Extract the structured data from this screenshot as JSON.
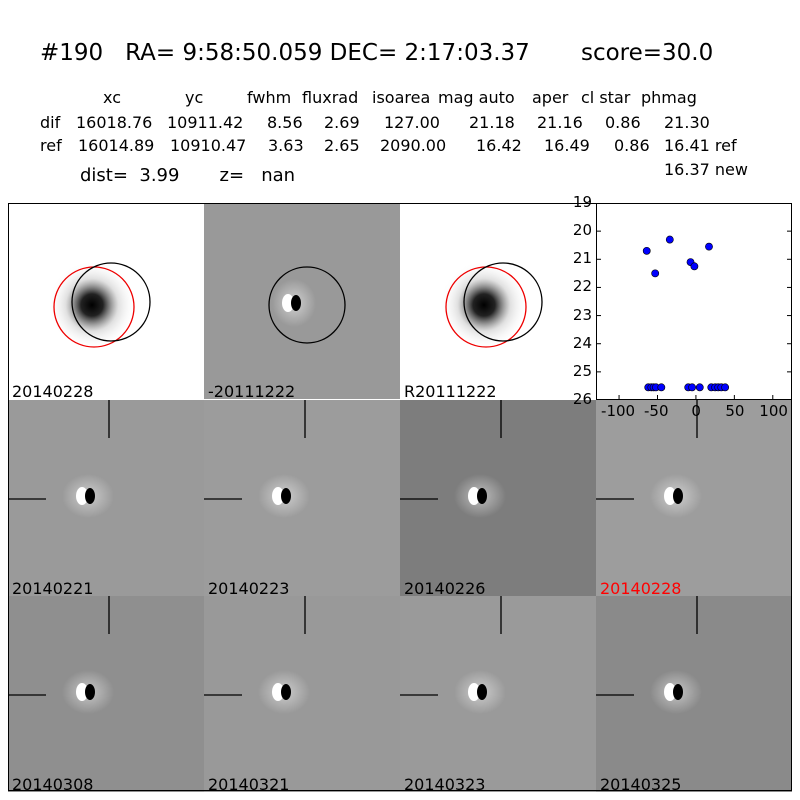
{
  "header": {
    "title": "#190   RA= 9:58:50.059 DEC= 2:17:03.37       score=30.0",
    "columns": [
      "xc",
      "yc",
      "fwhm",
      "fluxrad",
      "isoarea",
      "mag auto",
      "aper",
      "cl star",
      "phmag"
    ],
    "dif_row": {
      "label": "dif",
      "values": [
        "16018.76",
        "10911.42",
        "8.56",
        "2.69",
        "127.00",
        "21.18",
        "21.16",
        "0.86",
        "21.30"
      ]
    },
    "ref_row": {
      "label": "ref",
      "values": [
        "16014.89",
        "10910.47",
        "3.63",
        "2.65",
        "2090.00",
        "16.42",
        "16.49",
        "0.86",
        "16.41 ref"
      ]
    },
    "new_mag": "16.37 new",
    "dist_line": "dist=  3.99       z=   nan"
  },
  "panels": [
    {
      "label": "20140228",
      "label_color": "#000000",
      "bg": "#ffffff",
      "kind": "sci"
    },
    {
      "label": "-20111222",
      "label_color": "#000000",
      "bg": "#999999",
      "kind": "diff"
    },
    {
      "label": "R20111222",
      "label_color": "#000000",
      "bg": "#ffffff",
      "kind": "sci"
    },
    {
      "label": "20140221",
      "label_color": "#000000",
      "bg": "#9a9a9a",
      "kind": "stamp"
    },
    {
      "label": "20140223",
      "label_color": "#000000",
      "bg": "#9c9c9c",
      "kind": "stamp"
    },
    {
      "label": "20140226",
      "label_color": "#000000",
      "bg": "#7d7d7d",
      "kind": "stamp"
    },
    {
      "label": "20140228",
      "label_color": "#ff0000",
      "bg": "#9d9d9d",
      "kind": "stamp"
    },
    {
      "label": "20140308",
      "label_color": "#000000",
      "bg": "#8f8f8f",
      "kind": "stamp"
    },
    {
      "label": "20140321",
      "label_color": "#000000",
      "bg": "#999999",
      "kind": "stamp"
    },
    {
      "label": "20140323",
      "label_color": "#000000",
      "bg": "#9a9a9a",
      "kind": "stamp"
    },
    {
      "label": "20140325",
      "label_color": "#000000",
      "bg": "#8a8a8a",
      "kind": "stamp"
    }
  ],
  "chart_data": {
    "type": "scatter",
    "xlim": [
      -130,
      125
    ],
    "ylim": [
      26,
      19
    ],
    "x_ticks": [
      "-100",
      "-50",
      "0",
      "50",
      "100"
    ],
    "x_tick_values": [
      -100,
      -50,
      0,
      50,
      100
    ],
    "y_ticks": [
      "19",
      "20",
      "21",
      "22",
      "23",
      "24",
      "25",
      "26"
    ],
    "y_tick_values": [
      19,
      20,
      21,
      22,
      23,
      24,
      25,
      26
    ],
    "point_color": "#0000ff",
    "points": [
      [
        -64,
        20.7
      ],
      [
        -53,
        21.5
      ],
      [
        -34,
        20.3
      ],
      [
        -7,
        21.1
      ],
      [
        -2,
        21.25
      ],
      [
        17,
        20.55
      ],
      [
        -62,
        25.55
      ],
      [
        -58,
        25.55
      ],
      [
        -55,
        25.55
      ],
      [
        -52,
        25.55
      ],
      [
        -45,
        25.55
      ],
      [
        -10,
        25.55
      ],
      [
        -5,
        25.55
      ],
      [
        5,
        25.55
      ],
      [
        20,
        25.55
      ],
      [
        25,
        25.55
      ],
      [
        29,
        25.55
      ],
      [
        33,
        25.55
      ],
      [
        38,
        25.55
      ]
    ]
  }
}
